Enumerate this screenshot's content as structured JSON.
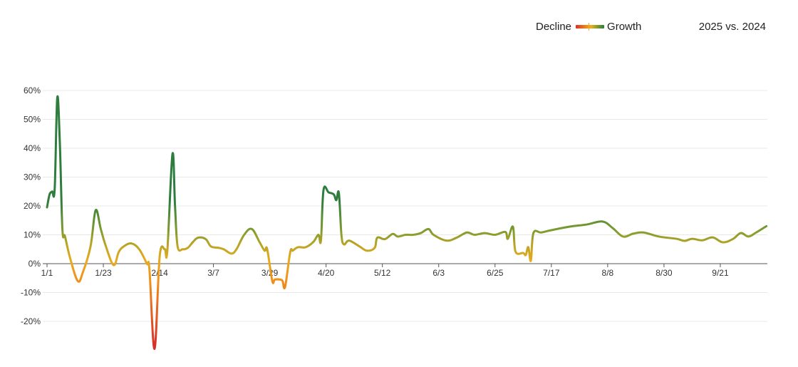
{
  "legend": {
    "left": "Decline",
    "right": "Growth"
  },
  "title": "2025 vs. 2024",
  "chart_data": {
    "type": "line",
    "title": "2025 vs. 2024",
    "xlabel": "",
    "ylabel": "",
    "ylim": [
      -30,
      60
    ],
    "yticks": [
      -20,
      -10,
      0,
      10,
      20,
      30,
      40,
      50,
      60
    ],
    "ytick_labels": [
      "-20%",
      "-10%",
      "0%",
      "10%",
      "20%",
      "30%",
      "40%",
      "50%",
      "60%"
    ],
    "xticks": [
      "1/1",
      "1/23",
      "2/14",
      "3/7",
      "3/29",
      "4/20",
      "5/12",
      "6/3",
      "6/25",
      "7/17",
      "8/8",
      "8/30",
      "9/21"
    ],
    "grid": true,
    "legend_position": "top-right",
    "colors": {
      "decline": "#d8302a",
      "neutral": "#e8b020",
      "growth": "#2e7d3e"
    },
    "x": [
      "1/1",
      "1/2",
      "1/3",
      "1/4",
      "1/5",
      "1/6",
      "1/7",
      "1/8",
      "1/10",
      "1/13",
      "1/15",
      "1/18",
      "1/20",
      "1/22",
      "1/24",
      "1/27",
      "1/29",
      "1/31",
      "2/3",
      "2/6",
      "2/9",
      "2/10",
      "2/12",
      "2/14",
      "2/16",
      "2/17",
      "2/19",
      "2/20",
      "2/21",
      "2/23",
      "2/25",
      "2/27",
      "3/1",
      "3/4",
      "3/6",
      "3/9",
      "3/11",
      "3/14",
      "3/16",
      "3/19",
      "3/22",
      "3/25",
      "3/27",
      "3/28",
      "3/30",
      "3/31",
      "4/2",
      "4/3",
      "4/4",
      "4/6",
      "4/7",
      "4/9",
      "4/12",
      "4/15",
      "4/17",
      "4/18",
      "4/19",
      "4/21",
      "4/23",
      "4/24",
      "4/25",
      "4/26",
      "4/27",
      "4/29",
      "5/3",
      "5/6",
      "5/9",
      "5/10",
      "5/13",
      "5/16",
      "5/18",
      "5/21",
      "5/24",
      "5/27",
      "5/30",
      "6/1",
      "6/6",
      "6/10",
      "6/14",
      "6/17",
      "6/21",
      "6/25",
      "6/29",
      "6/30",
      "7/2",
      "7/3",
      "7/6",
      "7/7",
      "7/8",
      "7/9",
      "7/10",
      "7/13",
      "7/17",
      "7/24",
      "7/31",
      "8/6",
      "8/10",
      "8/14",
      "8/18",
      "8/22",
      "8/28",
      "9/4",
      "9/7",
      "9/10",
      "9/14",
      "9/18",
      "9/22",
      "9/26",
      "9/29",
      "10/2",
      "10/5",
      "10/9"
    ],
    "values": [
      19.5,
      24,
      25,
      26,
      57.5,
      42,
      12,
      9.5,
      2,
      -6,
      -3,
      6,
      18.5,
      12,
      6,
      -0.5,
      4,
      6,
      7,
      5,
      0,
      -2,
      -29.5,
      2.5,
      5,
      4.5,
      38,
      20,
      6,
      5,
      5.5,
      7.5,
      9,
      8.5,
      6,
      5.5,
      5,
      3.5,
      5,
      10,
      12,
      7.5,
      4.5,
      5,
      -6,
      -5.5,
      -5.5,
      -6,
      -8,
      4,
      4.5,
      5.7,
      5.7,
      7.5,
      10,
      8,
      25.5,
      24.7,
      24,
      22,
      24.5,
      10,
      6.7,
      8,
      6,
      4.5,
      5.5,
      9,
      8.5,
      10.3,
      9.4,
      10,
      10,
      10.6,
      12,
      10,
      8,
      9,
      10.8,
      10,
      10.6,
      10,
      11,
      8.6,
      12.8,
      4.2,
      3.7,
      3,
      5.7,
      1,
      10.6,
      10.8,
      11.6,
      12.8,
      13.6,
      14.6,
      12.3,
      9.4,
      10.4,
      10.8,
      9.4,
      8.6,
      7.9,
      8.6,
      8.1,
      9.1,
      7.4,
      8.6,
      10.6,
      9.4,
      10.8,
      13
    ]
  }
}
